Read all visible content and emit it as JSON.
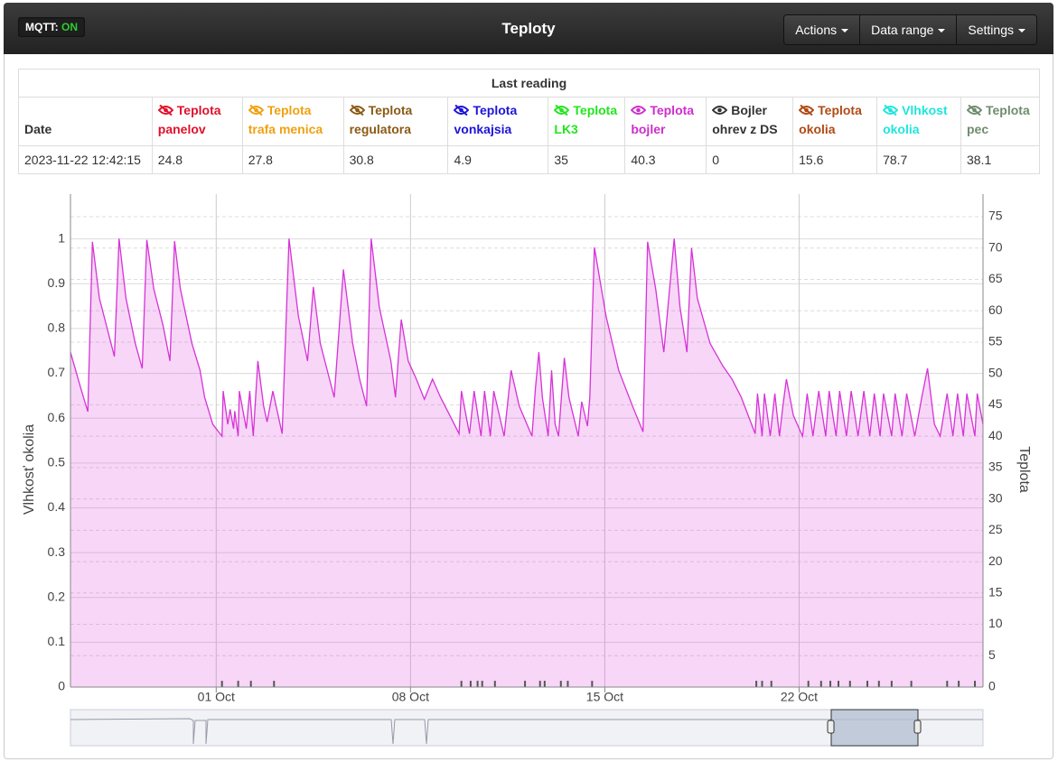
{
  "navbar": {
    "status_label": "MQTT:",
    "status_value": "ON",
    "title": "Teploty",
    "menus": [
      "Actions",
      "Data range",
      "Settings"
    ]
  },
  "table": {
    "title": "Last reading",
    "columns": [
      {
        "name": "Date"
      },
      {
        "name": "Teplota panelov",
        "color": "#e0102a",
        "visible": false
      },
      {
        "name": "Teplota trafa menica",
        "color": "#f0a010",
        "visible": false
      },
      {
        "name": "Teplota regulatora",
        "color": "#8b5a14",
        "visible": false
      },
      {
        "name": "Teplota vonkajsia",
        "color": "#1c14d8",
        "visible": false
      },
      {
        "name": "Teplota LK3",
        "color": "#22e61e",
        "visible": false
      },
      {
        "name": "Teplota bojler",
        "color": "#cc2ecc",
        "visible": true
      },
      {
        "name": "Bojler ohrev z DS",
        "color": "#333333",
        "visible": true
      },
      {
        "name": "Teplota okolia",
        "color": "#b04a14",
        "visible": false
      },
      {
        "name": "Vlhkost okolia",
        "color": "#1ee6dc",
        "visible": false
      },
      {
        "name": "Teplota pec",
        "color": "#6e8c6e",
        "visible": false
      }
    ],
    "rows": [
      [
        "2023-11-22 12:42:15",
        24.8,
        27.8,
        30.8,
        4.9,
        35,
        40.3,
        0,
        15.6,
        78.7,
        38.1
      ]
    ]
  },
  "chart_data": {
    "type": "line",
    "y_label": "Vlhkosť okolia",
    "y2_label": "Teplota",
    "xlim": [
      "Sep 25 18:00",
      "Oct 28 15:00"
    ],
    "xticks": [
      {
        "value": "Oct 01 00:00",
        "label": "01 Oct"
      },
      {
        "value": "Oct 08 00:00",
        "label": "08 Oct"
      },
      {
        "value": "Oct 15 00:00",
        "label": "15 Oct"
      },
      {
        "value": "Oct 22 00:00",
        "label": "22 Oct"
      }
    ],
    "ylim": [
      0,
      1.1
    ],
    "yticks": [
      0,
      0.1,
      0.2,
      0.3,
      0.4,
      0.5,
      0.6,
      0.7,
      0.8,
      0.9,
      1
    ],
    "y2lim": [
      0,
      78.6
    ],
    "y2ticks": [
      0,
      5,
      10,
      15,
      20,
      25,
      30,
      35,
      40,
      45,
      50,
      55,
      60,
      65,
      70,
      75
    ],
    "grid": true,
    "series": [
      {
        "color": "#d633d6",
        "axis": "y2",
        "area": true,
        "style": "line",
        "x": [
          "Sep 25 18:00",
          "Sep 26 03:00",
          "Sep 26 09:00",
          "Sep 26 13:00",
          "Sep 26 19:00",
          "Sep 27 03:00",
          "Sep 27 08:00",
          "Sep 27 12:00",
          "Sep 27 18:00",
          "Sep 28 02:00",
          "Sep 28 08:00",
          "Sep 28 12:00",
          "Sep 28 18:00",
          "Sep 29 02:00",
          "Sep 29 08:00",
          "Sep 29 12:00",
          "Sep 29 17:00",
          "Sep 30 03:00",
          "Sep 30 10:00",
          "Sep 30 14:00",
          "Sep 30 21:00",
          "Oct 01 05:00",
          "Oct 01 06:00",
          "Oct 01 10:00",
          "Oct 01 12:00",
          "Oct 01 15:00",
          "Oct 01 16:00",
          "Oct 01 19:00",
          "Oct 01 20:00",
          "Oct 02 02:00",
          "Oct 02 05:00",
          "Oct 02 08:00",
          "Oct 02 12:00",
          "Oct 02 17:00",
          "Oct 02 20:00",
          "Oct 03 01:00",
          "Oct 03 09:00",
          "Oct 03 15:00",
          "Oct 03 23:00",
          "Oct 04 07:00",
          "Oct 04 12:00",
          "Oct 04 18:00",
          "Oct 05 02:00",
          "Oct 05 06:00",
          "Oct 05 14:00",
          "Oct 05 22:00",
          "Oct 06 04:00",
          "Oct 06 10:00",
          "Oct 06 14:00",
          "Oct 06 21:00",
          "Oct 07 07:00",
          "Oct 07 11:00",
          "Oct 07 16:00",
          "Oct 07 22:00",
          "Oct 08 05:00",
          "Oct 08 12:00",
          "Oct 08 19:00",
          "Oct 09 02:00",
          "Oct 09 10:00",
          "Oct 09 18:00",
          "Oct 09 20:00",
          "Oct 10 03:00",
          "Oct 10 07:00",
          "Oct 10 13:00",
          "Oct 10 16:00",
          "Oct 10 21:00",
          "Oct 11 00:00",
          "Oct 11 09:00",
          "Oct 11 15:00",
          "Oct 11 22:00",
          "Oct 12 09:00",
          "Oct 12 12:00",
          "Oct 12 15:00",
          "Oct 12 18:00",
          "Oct 12 23:00",
          "Oct 13 02:00",
          "Oct 13 05:00",
          "Oct 13 08:00",
          "Oct 13 13:00",
          "Oct 13 17:00",
          "Oct 14 01:00",
          "Oct 14 04:00",
          "Oct 14 09:00",
          "Oct 14 11:00",
          "Oct 14 15:00",
          "Oct 15 01:00",
          "Oct 15 12:00",
          "Oct 16 00:00",
          "Oct 16 09:00",
          "Oct 16 13:00",
          "Oct 16 20:00",
          "Oct 17 03:00",
          "Oct 17 12:00",
          "Oct 17 17:00",
          "Oct 17 23:00",
          "Oct 18 03:00",
          "Oct 18 08:00",
          "Oct 18 19:00",
          "Oct 19 06:00",
          "Oct 19 14:00",
          "Oct 19 22:00",
          "Oct 20 10:00",
          "Oct 20 12:00",
          "Oct 20 16:00",
          "Oct 20 18:00",
          "Oct 20 23:00",
          "Oct 21 03:00",
          "Oct 21 07:00",
          "Oct 21 10:00",
          "Oct 21 13:00",
          "Oct 21 19:00",
          "Oct 22 03:00",
          "Oct 22 07:00",
          "Oct 22 12:00",
          "Oct 22 17:00",
          "Oct 22 23:00",
          "Oct 23 02:00",
          "Oct 23 08:00",
          "Oct 23 11:00",
          "Oct 23 17:00",
          "Oct 23 21:00",
          "Oct 24 03:00",
          "Oct 24 08:00",
          "Oct 24 13:00",
          "Oct 24 17:00",
          "Oct 24 22:00",
          "Oct 25 01:00",
          "Oct 25 08:00",
          "Oct 25 11:00",
          "Oct 25 17:00",
          "Oct 25 21:00",
          "Oct 26 04:00",
          "Oct 26 10:00",
          "Oct 26 15:00",
          "Oct 26 21:00",
          "Oct 27 02:00",
          "Oct 27 08:00",
          "Oct 27 13:00",
          "Oct 27 17:00",
          "Oct 27 22:00",
          "Oct 28 01:00",
          "Oct 28 08:00",
          "Oct 28 10:00",
          "Oct 28 15:00"
        ],
        "values": [
          53.4,
          47.6,
          43.9,
          71.0,
          62.0,
          56.3,
          52.7,
          71.5,
          62.0,
          54.8,
          50.8,
          71.3,
          63.5,
          57.7,
          52.0,
          71.1,
          63.5,
          54.8,
          50.5,
          46.2,
          41.9,
          40.0,
          47.2,
          41.9,
          44.3,
          41.2,
          44.0,
          40.0,
          47.2,
          41.2,
          47.2,
          40.0,
          52.0,
          44.8,
          42.3,
          47.2,
          40.4,
          71.5,
          59.2,
          52.0,
          63.8,
          54.8,
          49.1,
          46.2,
          66.6,
          54.8,
          49.1,
          44.8,
          71.5,
          60.6,
          52.0,
          46.2,
          58.6,
          52.0,
          49.1,
          45.9,
          49.1,
          46.2,
          43.3,
          40.4,
          47.2,
          40.4,
          47.2,
          40.0,
          47.2,
          40.0,
          47.2,
          40.0,
          50.5,
          44.8,
          40.0,
          47.6,
          53.4,
          46.2,
          40.0,
          50.5,
          41.9,
          40.0,
          52.5,
          46.2,
          40.0,
          45.5,
          41.6,
          46.2,
          70.1,
          59.2,
          50.5,
          44.8,
          40.7,
          71.0,
          63.5,
          53.4,
          71.5,
          60.6,
          53.4,
          70.0,
          62.0,
          54.8,
          51.2,
          49.1,
          46.2,
          40.4,
          46.8,
          40.0,
          46.8,
          40.0,
          46.8,
          40.0,
          44.8,
          49.1,
          43.3,
          40.0,
          46.8,
          40.0,
          47.2,
          40.0,
          47.2,
          40.0,
          47.2,
          40.0,
          47.2,
          40.0,
          47.2,
          40.0,
          46.8,
          40.0,
          46.8,
          40.0,
          46.8,
          40.0,
          46.8,
          40.0,
          46.2,
          50.8,
          41.9,
          40.0,
          46.8,
          40.0,
          46.8,
          40.0,
          46.8,
          40.0,
          46.8,
          41.9
        ]
      },
      {
        "color": "#555555",
        "axis": "y2",
        "style": "spikes",
        "x": [
          "Oct 01 05:00",
          "Oct 01 19:00",
          "Oct 02 06:00",
          "Oct 03 02:00",
          "Oct 09 20:00",
          "Oct 10 04:00",
          "Oct 10 10:00",
          "Oct 10 14:00",
          "Oct 11 01:00",
          "Oct 12 03:00",
          "Oct 12 16:00",
          "Oct 12 20:00",
          "Oct 13 10:00",
          "Oct 13 16:00",
          "Oct 14 13:00",
          "Oct 20 11:00",
          "Oct 20 16:00",
          "Oct 21 00:00",
          "Oct 22 08:00",
          "Oct 22 19:00",
          "Oct 23 03:00",
          "Oct 23 10:00",
          "Oct 23 20:00",
          "Oct 24 11:00",
          "Oct 24 21:00",
          "Oct 25 08:00",
          "Oct 26 01:00",
          "Oct 27 08:00",
          "Oct 27 18:00",
          "Oct 28 08:00"
        ],
        "values": [
          1,
          1,
          1,
          1,
          1,
          1,
          1,
          1,
          1,
          1,
          1,
          1,
          1,
          1,
          1,
          1,
          1,
          1,
          1,
          1,
          1,
          1,
          1,
          1,
          1,
          1,
          1,
          1,
          1,
          1
        ]
      }
    ]
  }
}
